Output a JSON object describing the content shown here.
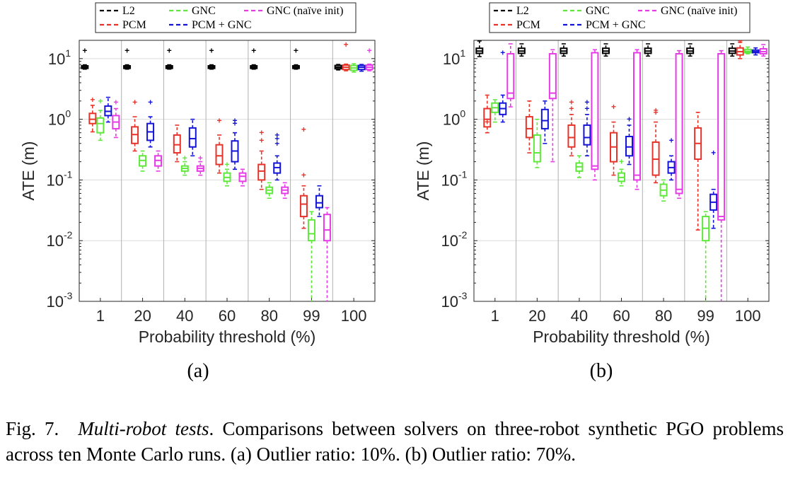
{
  "figure": {
    "caption_prefix": "Fig. 7.",
    "caption_title": "Multi-robot tests",
    "caption_text": ". Comparisons between solvers on three-robot synthetic PGO problems across ten Monte Carlo runs. (a) Outlier ratio: 10%. (b) Outlier ratio: 70%."
  },
  "colors": {
    "L2": "#000000",
    "PCM": "#e8332a",
    "GNC": "#5ee83a",
    "PCM + GNC": "#1414d8",
    "GNC (naïve init)": "#e63be6"
  },
  "chart_data": [
    {
      "type": "box",
      "panel_label": "(a)",
      "xlabel": "Probability threshold (%)",
      "ylabel": "ATE (m)",
      "yscale": "log",
      "ylim": [
        0.001,
        20
      ],
      "yticks": [
        0.001,
        0.01,
        0.1,
        1,
        10
      ],
      "ytick_labels": [
        [
          "10",
          "-3"
        ],
        [
          "10",
          "-2"
        ],
        [
          "10",
          "-1"
        ],
        [
          "10",
          "0"
        ],
        [
          "10",
          "1"
        ]
      ],
      "grid": true,
      "legend": {
        "placement": "top",
        "entries": [
          "L2",
          "GNC",
          "GNC (naïve init)",
          "PCM",
          "PCM + GNC"
        ]
      },
      "categories": [
        "1",
        "20",
        "40",
        "60",
        "80",
        "99",
        "100"
      ],
      "series": [
        {
          "name": "L2",
          "boxes": [
            {
              "q1": 6.9,
              "med": 7.2,
              "q3": 7.6,
              "lo": 6.7,
              "hi": 7.9,
              "out": [
                13.5
              ]
            },
            {
              "q1": 6.9,
              "med": 7.2,
              "q3": 7.6,
              "lo": 6.7,
              "hi": 7.9,
              "out": [
                13.5
              ]
            },
            {
              "q1": 6.9,
              "med": 7.2,
              "q3": 7.6,
              "lo": 6.7,
              "hi": 7.9,
              "out": [
                13.5
              ]
            },
            {
              "q1": 6.9,
              "med": 7.2,
              "q3": 7.6,
              "lo": 6.7,
              "hi": 7.9,
              "out": [
                13.5
              ]
            },
            {
              "q1": 6.9,
              "med": 7.2,
              "q3": 7.6,
              "lo": 6.7,
              "hi": 7.9,
              "out": [
                13.5
              ]
            },
            {
              "q1": 6.9,
              "med": 7.2,
              "q3": 7.6,
              "lo": 6.7,
              "hi": 7.9,
              "out": [
                13.5
              ]
            },
            {
              "q1": 6.8,
              "med": 7.2,
              "q3": 7.7,
              "lo": 6.5,
              "hi": 8.0,
              "out": []
            }
          ]
        },
        {
          "name": "PCM",
          "boxes": [
            {
              "q1": 0.85,
              "med": 1.0,
              "q3": 1.25,
              "lo": 0.62,
              "hi": 1.7,
              "out": [
                2.1
              ]
            },
            {
              "q1": 0.4,
              "med": 0.56,
              "q3": 0.75,
              "lo": 0.3,
              "hi": 1.1,
              "out": [
                1.9
              ]
            },
            {
              "q1": 0.28,
              "med": 0.38,
              "q3": 0.55,
              "lo": 0.2,
              "hi": 0.8,
              "out": []
            },
            {
              "q1": 0.18,
              "med": 0.25,
              "q3": 0.38,
              "lo": 0.13,
              "hi": 0.55,
              "out": [
                0.95
              ]
            },
            {
              "q1": 0.1,
              "med": 0.14,
              "q3": 0.18,
              "lo": 0.07,
              "hi": 0.3,
              "out": [
                0.45,
                0.6
              ]
            },
            {
              "q1": 0.025,
              "med": 0.04,
              "q3": 0.055,
              "lo": 0.016,
              "hi": 0.08,
              "out": [
                0.12,
                0.68
              ]
            },
            {
              "q1": 6.6,
              "med": 7.2,
              "q3": 7.8,
              "lo": 6.3,
              "hi": 8.1,
              "out": [
                17
              ]
            }
          ]
        },
        {
          "name": "GNC",
          "boxes": [
            {
              "q1": 0.6,
              "med": 0.85,
              "q3": 1.05,
              "lo": 0.45,
              "hi": 1.4,
              "out": [
                2.0
              ]
            },
            {
              "q1": 0.17,
              "med": 0.21,
              "q3": 0.25,
              "lo": 0.14,
              "hi": 0.3,
              "out": []
            },
            {
              "q1": 0.14,
              "med": 0.155,
              "q3": 0.17,
              "lo": 0.12,
              "hi": 0.2,
              "out": [
                0.23
              ]
            },
            {
              "q1": 0.095,
              "med": 0.11,
              "q3": 0.13,
              "lo": 0.08,
              "hi": 0.15,
              "out": [
                0.18
              ]
            },
            {
              "q1": 0.06,
              "med": 0.068,
              "q3": 0.076,
              "lo": 0.05,
              "hi": 0.09,
              "out": []
            },
            {
              "q1": 0.01,
              "med": 0.013,
              "q3": 0.022,
              "lo": 0.0001,
              "hi": 0.03,
              "out": []
            },
            {
              "q1": 6.4,
              "med": 7.0,
              "q3": 7.7,
              "lo": 6.0,
              "hi": 8.2,
              "out": []
            }
          ]
        },
        {
          "name": "PCM + GNC",
          "boxes": [
            {
              "q1": 1.15,
              "med": 1.35,
              "q3": 1.65,
              "lo": 0.9,
              "hi": 2.3,
              "out": []
            },
            {
              "q1": 0.45,
              "med": 0.62,
              "q3": 0.85,
              "lo": 0.35,
              "hi": 1.1,
              "out": [
                1.9
              ]
            },
            {
              "q1": 0.35,
              "med": 0.48,
              "q3": 0.72,
              "lo": 0.25,
              "hi": 1.0,
              "out": []
            },
            {
              "q1": 0.2,
              "med": 0.3,
              "q3": 0.44,
              "lo": 0.15,
              "hi": 0.6,
              "out": [
                0.85,
                0.95
              ]
            },
            {
              "q1": 0.13,
              "med": 0.16,
              "q3": 0.19,
              "lo": 0.1,
              "hi": 0.25,
              "out": [
                0.4,
                0.48,
                0.55
              ]
            },
            {
              "q1": 0.035,
              "med": 0.042,
              "q3": 0.055,
              "lo": 0.025,
              "hi": 0.08,
              "out": []
            },
            {
              "q1": 6.6,
              "med": 7.2,
              "q3": 7.7,
              "lo": 6.2,
              "hi": 8.0,
              "out": []
            }
          ]
        },
        {
          "name": "GNC (naïve init)",
          "boxes": [
            {
              "q1": 0.7,
              "med": 0.9,
              "q3": 1.15,
              "lo": 0.5,
              "hi": 1.5,
              "out": [
                1.9
              ]
            },
            {
              "q1": 0.17,
              "med": 0.21,
              "q3": 0.25,
              "lo": 0.14,
              "hi": 0.3,
              "out": []
            },
            {
              "q1": 0.14,
              "med": 0.155,
              "q3": 0.17,
              "lo": 0.12,
              "hi": 0.2,
              "out": [
                0.23
              ]
            },
            {
              "q1": 0.095,
              "med": 0.115,
              "q3": 0.13,
              "lo": 0.08,
              "hi": 0.15,
              "out": []
            },
            {
              "q1": 0.06,
              "med": 0.068,
              "q3": 0.076,
              "lo": 0.05,
              "hi": 0.09,
              "out": []
            },
            {
              "q1": 0.01,
              "med": 0.015,
              "q3": 0.027,
              "lo": 0.0001,
              "hi": 0.035,
              "out": []
            },
            {
              "q1": 6.6,
              "med": 7.2,
              "q3": 7.8,
              "lo": 6.3,
              "hi": 8.1,
              "out": [
                13.5
              ]
            }
          ]
        }
      ]
    },
    {
      "type": "box",
      "panel_label": "(b)",
      "xlabel": "Probability threshold (%)",
      "ylabel": "ATE (m)",
      "yscale": "log",
      "ylim": [
        0.001,
        20
      ],
      "yticks": [
        0.001,
        0.01,
        0.1,
        1,
        10
      ],
      "ytick_labels": [
        [
          "10",
          "-3"
        ],
        [
          "10",
          "-2"
        ],
        [
          "10",
          "-1"
        ],
        [
          "10",
          "0"
        ],
        [
          "10",
          "1"
        ]
      ],
      "grid": true,
      "legend": {
        "placement": "top",
        "entries": [
          "L2",
          "GNC",
          "GNC (naïve init)",
          "PCM",
          "PCM + GNC"
        ]
      },
      "categories": [
        "1",
        "20",
        "40",
        "60",
        "80",
        "99",
        "100"
      ],
      "series": [
        {
          "name": "L2",
          "boxes": [
            {
              "q1": 12.2,
              "med": 13.3,
              "q3": 14.8,
              "lo": 10.8,
              "hi": 19.5,
              "out": []
            },
            {
              "q1": 12.2,
              "med": 13.3,
              "q3": 14.8,
              "lo": 11.0,
              "hi": 17.5,
              "out": []
            },
            {
              "q1": 12.2,
              "med": 13.3,
              "q3": 14.8,
              "lo": 11.0,
              "hi": 17.5,
              "out": []
            },
            {
              "q1": 12.2,
              "med": 13.3,
              "q3": 14.8,
              "lo": 11.0,
              "hi": 17.5,
              "out": []
            },
            {
              "q1": 12.2,
              "med": 13.3,
              "q3": 14.8,
              "lo": 11.0,
              "hi": 17.5,
              "out": []
            },
            {
              "q1": 12.2,
              "med": 13.3,
              "q3": 14.8,
              "lo": 11.0,
              "hi": 17.5,
              "out": []
            },
            {
              "q1": 12.2,
              "med": 13.3,
              "q3": 14.8,
              "lo": 11.0,
              "hi": 17.5,
              "out": []
            }
          ]
        },
        {
          "name": "PCM",
          "boxes": [
            {
              "q1": 0.75,
              "med": 1.0,
              "q3": 1.5,
              "lo": 0.6,
              "hi": 2.5,
              "out": [
                0.9
              ]
            },
            {
              "q1": 0.5,
              "med": 0.7,
              "q3": 1.1,
              "lo": 0.28,
              "hi": 2.0,
              "out": []
            },
            {
              "q1": 0.35,
              "med": 0.5,
              "q3": 0.8,
              "lo": 0.25,
              "hi": 1.2,
              "out": [
                1.5,
                1.9
              ]
            },
            {
              "q1": 0.2,
              "med": 0.35,
              "q3": 0.6,
              "lo": 0.12,
              "hi": 0.9,
              "out": [
                1.6
              ]
            },
            {
              "q1": 0.12,
              "med": 0.22,
              "q3": 0.42,
              "lo": 0.09,
              "hi": 0.9,
              "out": [
                1.3,
                1.4
              ]
            },
            {
              "q1": 0.22,
              "med": 0.4,
              "q3": 0.72,
              "lo": 0.015,
              "hi": 1.3,
              "out": []
            },
            {
              "q1": 11.5,
              "med": 13.0,
              "q3": 15.0,
              "lo": 10.0,
              "hi": 18.5,
              "out": [
                19.5
              ]
            }
          ]
        },
        {
          "name": "GNC",
          "boxes": [
            {
              "q1": 1.3,
              "med": 1.55,
              "q3": 1.85,
              "lo": 0.9,
              "hi": 2.1,
              "out": []
            },
            {
              "q1": 0.2,
              "med": 0.28,
              "q3": 0.55,
              "lo": 0.16,
              "hi": 1.0,
              "out": []
            },
            {
              "q1": 0.14,
              "med": 0.165,
              "q3": 0.19,
              "lo": 0.11,
              "hi": 0.25,
              "out": []
            },
            {
              "q1": 0.095,
              "med": 0.11,
              "q3": 0.13,
              "lo": 0.08,
              "hi": 0.15,
              "out": [
                0.2
              ]
            },
            {
              "q1": 0.055,
              "med": 0.068,
              "q3": 0.085,
              "lo": 0.045,
              "hi": 0.1,
              "out": []
            },
            {
              "q1": 0.01,
              "med": 0.016,
              "q3": 0.025,
              "lo": 0.0001,
              "hi": 0.03,
              "out": []
            },
            {
              "q1": 12.5,
              "med": 13.2,
              "q3": 14.2,
              "lo": 12.0,
              "hi": 15.5,
              "out": []
            }
          ]
        },
        {
          "name": "PCM + GNC",
          "boxes": [
            {
              "q1": 1.2,
              "med": 1.5,
              "q3": 1.85,
              "lo": 0.9,
              "hi": 2.5,
              "out": [
                12.5
              ]
            },
            {
              "q1": 0.7,
              "med": 0.95,
              "q3": 1.45,
              "lo": 0.4,
              "hi": 2.0,
              "out": []
            },
            {
              "q1": 0.38,
              "med": 0.5,
              "q3": 0.8,
              "lo": 0.25,
              "hi": 1.2,
              "out": [
                1.5,
                1.9
              ]
            },
            {
              "q1": 0.25,
              "med": 0.35,
              "q3": 0.52,
              "lo": 0.18,
              "hi": 0.8,
              "out": [
                1.0
              ]
            },
            {
              "q1": 0.13,
              "med": 0.16,
              "q3": 0.2,
              "lo": 0.1,
              "hi": 0.25,
              "out": [
                0.45
              ]
            },
            {
              "q1": 0.032,
              "med": 0.043,
              "q3": 0.058,
              "lo": 0.016,
              "hi": 0.07,
              "out": [
                0.28
              ]
            },
            {
              "q1": 12.5,
              "med": 13.0,
              "q3": 13.8,
              "lo": 11.5,
              "hi": 15.0,
              "out": []
            }
          ]
        },
        {
          "name": "GNC (naïve init)",
          "boxes": [
            {
              "q1": 2.2,
              "med": 2.7,
              "q3": 12.0,
              "lo": 1.6,
              "hi": 17.5,
              "out": []
            },
            {
              "q1": 2.2,
              "med": 2.7,
              "q3": 12.0,
              "lo": 0.2,
              "hi": 14.0,
              "out": []
            },
            {
              "q1": 0.15,
              "med": 0.17,
              "q3": 12.5,
              "lo": 0.1,
              "hi": 14.0,
              "out": []
            },
            {
              "q1": 0.1,
              "med": 0.12,
              "q3": 12.5,
              "lo": 0.07,
              "hi": 14.0,
              "out": []
            },
            {
              "q1": 0.06,
              "med": 0.07,
              "q3": 12.0,
              "lo": 0.05,
              "hi": 13.5,
              "out": []
            },
            {
              "q1": 0.022,
              "med": 0.025,
              "q3": 12.0,
              "lo": 0.0001,
              "hi": 13.5,
              "out": []
            },
            {
              "q1": 12.0,
              "med": 13.0,
              "q3": 14.5,
              "lo": 11.0,
              "hi": 17.0,
              "out": []
            }
          ]
        }
      ]
    }
  ]
}
